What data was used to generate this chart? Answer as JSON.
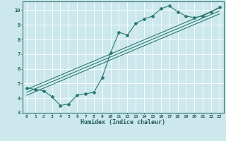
{
  "xlabel": "Humidex (Indice chaleur)",
  "ylabel": "",
  "bg_color": "#cce8ec",
  "line_color": "#2d7a6e",
  "grid_color": "#ffffff",
  "xlim": [
    -0.5,
    23.5
  ],
  "ylim": [
    3,
    10.6
  ],
  "yticks": [
    3,
    4,
    5,
    6,
    7,
    8,
    9,
    10
  ],
  "xticks": [
    0,
    1,
    2,
    3,
    4,
    5,
    6,
    7,
    8,
    9,
    10,
    11,
    12,
    13,
    14,
    15,
    16,
    17,
    18,
    19,
    20,
    21,
    22,
    23
  ],
  "series1_x": [
    0,
    1,
    2,
    3,
    4,
    5,
    6,
    7,
    8,
    9,
    10,
    11,
    12,
    13,
    14,
    15,
    16,
    17,
    18,
    19,
    20,
    21,
    22,
    23
  ],
  "series1_y": [
    4.7,
    4.6,
    4.5,
    4.1,
    3.5,
    3.6,
    4.2,
    4.3,
    4.4,
    5.4,
    7.1,
    8.5,
    8.3,
    9.1,
    9.4,
    9.6,
    10.1,
    10.3,
    9.9,
    9.6,
    9.5,
    9.6,
    9.9,
    10.2
  ],
  "series2_x": [
    0,
    23
  ],
  "series2_y": [
    4.6,
    10.15
  ],
  "series3_x": [
    0,
    23
  ],
  "series3_y": [
    4.2,
    9.75
  ],
  "series4_x": [
    0,
    23
  ],
  "series4_y": [
    4.4,
    9.95
  ]
}
